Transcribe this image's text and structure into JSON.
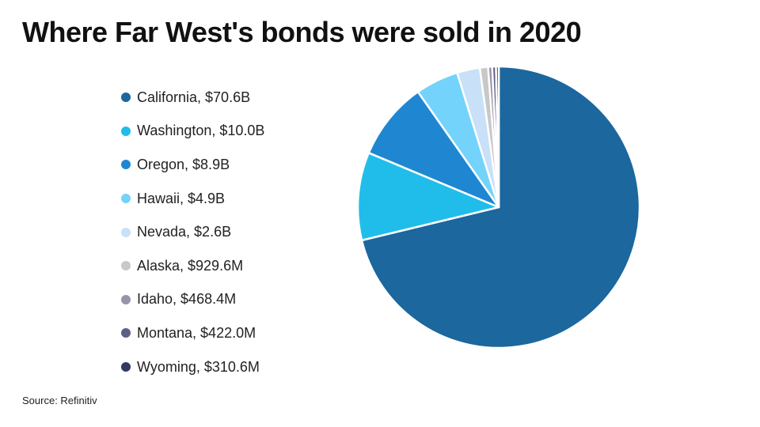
{
  "title": "Where Far West's bonds were sold in 2020",
  "source": "Source: Refinitiv",
  "chart_data": {
    "type": "pie",
    "title": "Where Far West's bonds were sold in 2020",
    "legend_placement": "left",
    "slices": [
      {
        "label": "California, $70.6B",
        "name": "California",
        "value": 70.6,
        "unit": "B",
        "color": "#1b679e"
      },
      {
        "label": "Washington, $10.0B",
        "name": "Washington",
        "value": 10.0,
        "unit": "B",
        "color": "#20bdea"
      },
      {
        "label": "Oregon, $8.9B",
        "name": "Oregon",
        "value": 8.9,
        "unit": "B",
        "color": "#1f87d1"
      },
      {
        "label": "Hawaii, $4.9B",
        "name": "Hawaii",
        "value": 4.9,
        "unit": "B",
        "color": "#73d3fb"
      },
      {
        "label": "Nevada, $2.6B",
        "name": "Nevada",
        "value": 2.6,
        "unit": "B",
        "color": "#c8e0f8"
      },
      {
        "label": "Alaska, $929.6M",
        "name": "Alaska",
        "value": 0.9296,
        "unit": "B",
        "color": "#c8c8c8"
      },
      {
        "label": "Idaho, $468.4M",
        "name": "Idaho",
        "value": 0.4684,
        "unit": "B",
        "color": "#9a93a8"
      },
      {
        "label": "Montana, $422.0M",
        "name": "Montana",
        "value": 0.422,
        "unit": "B",
        "color": "#5d5f85"
      },
      {
        "label": "Wyoming, $310.6M",
        "name": "Wyoming",
        "value": 0.3106,
        "unit": "B",
        "color": "#313a66"
      }
    ]
  }
}
